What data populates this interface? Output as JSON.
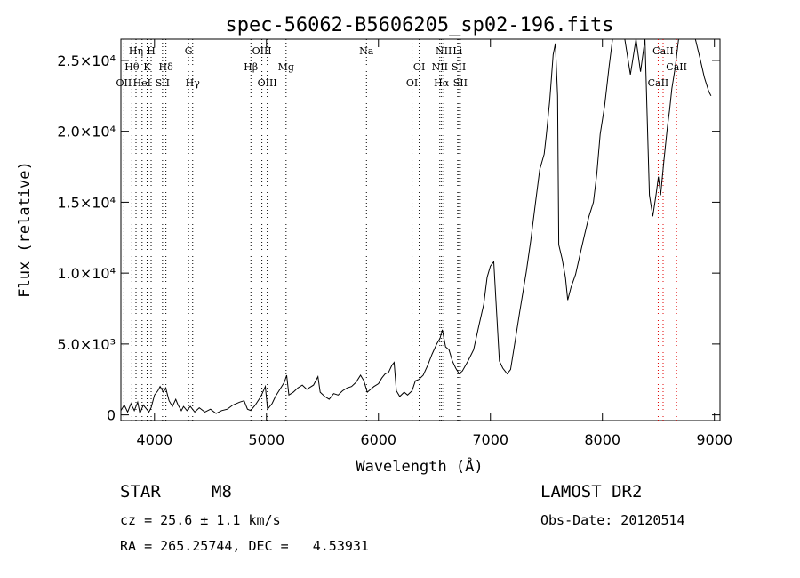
{
  "chart_data": {
    "type": "line",
    "title": "spec-56062-B5606205_sp02-196.fits",
    "xlabel": "Wavelength (Å)",
    "ylabel": "Flux (relative)",
    "xlim": [
      3700,
      9050
    ],
    "ylim": [
      -400,
      26500
    ],
    "xticks": [
      4000,
      5000,
      6000,
      7000,
      8000,
      9000
    ],
    "yticks": [
      {
        "value": 0,
        "label": "0"
      },
      {
        "value": 5000,
        "label": "5.0×10³"
      },
      {
        "value": 10000,
        "label": "1.0×10⁴"
      },
      {
        "value": 15000,
        "label": "1.5×10⁴"
      },
      {
        "value": 20000,
        "label": "2.0×10⁴"
      },
      {
        "value": 25000,
        "label": "2.5×10⁴"
      }
    ],
    "grid": false,
    "spectrum": [
      [
        3700,
        300
      ],
      [
        3730,
        700
      ],
      [
        3760,
        200
      ],
      [
        3790,
        800
      ],
      [
        3820,
        300
      ],
      [
        3850,
        900
      ],
      [
        3870,
        100
      ],
      [
        3900,
        700
      ],
      [
        3930,
        400
      ],
      [
        3950,
        200
      ],
      [
        3970,
        500
      ],
      [
        4000,
        1400
      ],
      [
        4030,
        1700
      ],
      [
        4050,
        2000
      ],
      [
        4080,
        1600
      ],
      [
        4100,
        1900
      ],
      [
        4130,
        1000
      ],
      [
        4160,
        600
      ],
      [
        4190,
        1100
      ],
      [
        4210,
        700
      ],
      [
        4240,
        300
      ],
      [
        4260,
        600
      ],
      [
        4290,
        300
      ],
      [
        4320,
        600
      ],
      [
        4360,
        200
      ],
      [
        4400,
        500
      ],
      [
        4450,
        200
      ],
      [
        4500,
        400
      ],
      [
        4550,
        100
      ],
      [
        4600,
        300
      ],
      [
        4650,
        400
      ],
      [
        4700,
        700
      ],
      [
        4760,
        900
      ],
      [
        4800,
        1000
      ],
      [
        4830,
        400
      ],
      [
        4860,
        300
      ],
      [
        4900,
        700
      ],
      [
        4950,
        1300
      ],
      [
        4990,
        2000
      ],
      [
        5010,
        400
      ],
      [
        5050,
        800
      ],
      [
        5080,
        1300
      ],
      [
        5120,
        1800
      ],
      [
        5160,
        2300
      ],
      [
        5180,
        2800
      ],
      [
        5200,
        1400
      ],
      [
        5240,
        1600
      ],
      [
        5280,
        1900
      ],
      [
        5320,
        2100
      ],
      [
        5360,
        1800
      ],
      [
        5420,
        2100
      ],
      [
        5460,
        2700
      ],
      [
        5480,
        1600
      ],
      [
        5520,
        1300
      ],
      [
        5560,
        1100
      ],
      [
        5600,
        1500
      ],
      [
        5640,
        1400
      ],
      [
        5680,
        1700
      ],
      [
        5720,
        1900
      ],
      [
        5760,
        2000
      ],
      [
        5800,
        2300
      ],
      [
        5840,
        2800
      ],
      [
        5870,
        2400
      ],
      [
        5900,
        1600
      ],
      [
        5930,
        1800
      ],
      [
        5960,
        2000
      ],
      [
        6000,
        2200
      ],
      [
        6030,
        2600
      ],
      [
        6060,
        2900
      ],
      [
        6090,
        3000
      ],
      [
        6120,
        3500
      ],
      [
        6140,
        3700
      ],
      [
        6160,
        1700
      ],
      [
        6190,
        1300
      ],
      [
        6230,
        1600
      ],
      [
        6260,
        1400
      ],
      [
        6300,
        1700
      ],
      [
        6330,
        2400
      ],
      [
        6360,
        2500
      ],
      [
        6400,
        2800
      ],
      [
        6440,
        3500
      ],
      [
        6480,
        4300
      ],
      [
        6520,
        5000
      ],
      [
        6550,
        5400
      ],
      [
        6570,
        6000
      ],
      [
        6600,
        4800
      ],
      [
        6630,
        4600
      ],
      [
        6660,
        3800
      ],
      [
        6690,
        3300
      ],
      [
        6720,
        2900
      ],
      [
        6750,
        3100
      ],
      [
        6800,
        3800
      ],
      [
        6850,
        4600
      ],
      [
        6900,
        6400
      ],
      [
        6940,
        7800
      ],
      [
        6970,
        9700
      ],
      [
        7000,
        10500
      ],
      [
        7030,
        10800
      ],
      [
        7050,
        8000
      ],
      [
        7080,
        3800
      ],
      [
        7110,
        3300
      ],
      [
        7150,
        2900
      ],
      [
        7180,
        3200
      ],
      [
        7220,
        5200
      ],
      [
        7260,
        7200
      ],
      [
        7320,
        10100
      ],
      [
        7360,
        12300
      ],
      [
        7400,
        14800
      ],
      [
        7440,
        17300
      ],
      [
        7480,
        18400
      ],
      [
        7500,
        19800
      ],
      [
        7530,
        22200
      ],
      [
        7560,
        25400
      ],
      [
        7580,
        26200
      ],
      [
        7600,
        22500
      ],
      [
        7610,
        12000
      ],
      [
        7640,
        11000
      ],
      [
        7670,
        9700
      ],
      [
        7690,
        8100
      ],
      [
        7720,
        9000
      ],
      [
        7760,
        9900
      ],
      [
        7800,
        11300
      ],
      [
        7840,
        12700
      ],
      [
        7880,
        14000
      ],
      [
        7920,
        15000
      ],
      [
        7950,
        17000
      ],
      [
        7980,
        19800
      ],
      [
        8020,
        21800
      ],
      [
        8060,
        24600
      ],
      [
        8090,
        26500
      ],
      [
        8150,
        26500
      ],
      [
        8200,
        26500
      ],
      [
        8250,
        24000
      ],
      [
        8300,
        26500
      ],
      [
        8340,
        24200
      ],
      [
        8380,
        26500
      ],
      [
        8420,
        15500
      ],
      [
        8450,
        14000
      ],
      [
        8480,
        15600
      ],
      [
        8500,
        16800
      ],
      [
        8520,
        15500
      ],
      [
        8550,
        18000
      ],
      [
        8580,
        20300
      ],
      [
        8600,
        21500
      ],
      [
        8620,
        23000
      ],
      [
        8650,
        24500
      ],
      [
        8680,
        26500
      ],
      [
        8780,
        26500
      ],
      [
        8830,
        26500
      ],
      [
        8870,
        25200
      ],
      [
        8910,
        23800
      ],
      [
        8950,
        22800
      ],
      [
        8970,
        22500
      ]
    ],
    "lines": [
      {
        "label": "Hη",
        "wl": 3835,
        "row": 1,
        "color": "#000000"
      },
      {
        "label": "H",
        "wl": 3970,
        "row": 1,
        "color": "#000000"
      },
      {
        "label": "Hθ",
        "wl": 3798,
        "row": 2,
        "color": "#000000"
      },
      {
        "label": "K",
        "wl": 3934,
        "row": 2,
        "color": "#000000"
      },
      {
        "label": "Hδ",
        "wl": 4102,
        "row": 2,
        "color": "#000000"
      },
      {
        "label": "OII",
        "wl": 3727,
        "row": 3,
        "color": "#000000"
      },
      {
        "label": "HeI",
        "wl": 3889,
        "row": 3,
        "color": "#000000"
      },
      {
        "label": "SII",
        "wl": 4072,
        "row": 3,
        "color": "#000000"
      },
      {
        "label": "G",
        "wl": 4304,
        "row": 1,
        "color": "#000000"
      },
      {
        "label": "Hγ",
        "wl": 4341,
        "row": 3,
        "color": "#000000"
      },
      {
        "label": "OIII",
        "wl": 4959,
        "row": 1,
        "color": "#000000"
      },
      {
        "label": "Hβ",
        "wl": 4861,
        "row": 2,
        "color": "#000000"
      },
      {
        "label": "Mg",
        "wl": 5175,
        "row": 2,
        "color": "#000000"
      },
      {
        "label": "OIII",
        "wl": 5007,
        "row": 3,
        "color": "#000000"
      },
      {
        "label": "Na",
        "wl": 5893,
        "row": 1,
        "color": "#000000"
      },
      {
        "label": "OI",
        "wl": 6364,
        "row": 2,
        "color": "#000000"
      },
      {
        "label": "OI",
        "wl": 6300,
        "row": 3,
        "color": "#000000"
      },
      {
        "label": "NII",
        "wl": 6583,
        "row": 1,
        "color": "#000000"
      },
      {
        "label": "Li",
        "wl": 6707,
        "row": 1,
        "color": "#000000"
      },
      {
        "label": "NII",
        "wl": 6548,
        "row": 2,
        "color": "#000000"
      },
      {
        "label": "SII",
        "wl": 6717,
        "row": 2,
        "color": "#000000"
      },
      {
        "label": "Hα",
        "wl": 6563,
        "row": 3,
        "color": "#000000"
      },
      {
        "label": "SII",
        "wl": 6731,
        "row": 3,
        "color": "#000000"
      },
      {
        "label": "CaII",
        "wl": 8542,
        "row": 1,
        "color": "#e00000"
      },
      {
        "label": "CaII",
        "wl": 8662,
        "row": 2,
        "color": "#e00000"
      },
      {
        "label": "CaII",
        "wl": 8498,
        "row": 3,
        "color": "#e00000"
      }
    ]
  },
  "info": {
    "class": "STAR",
    "subclass": "M8",
    "survey": "LAMOST DR2",
    "cz": "cz = 25.6 ± 1.1 km/s",
    "obs_date": "Obs-Date: 20120514",
    "coords": "RA = 265.25744, DEC =   4.53931"
  }
}
